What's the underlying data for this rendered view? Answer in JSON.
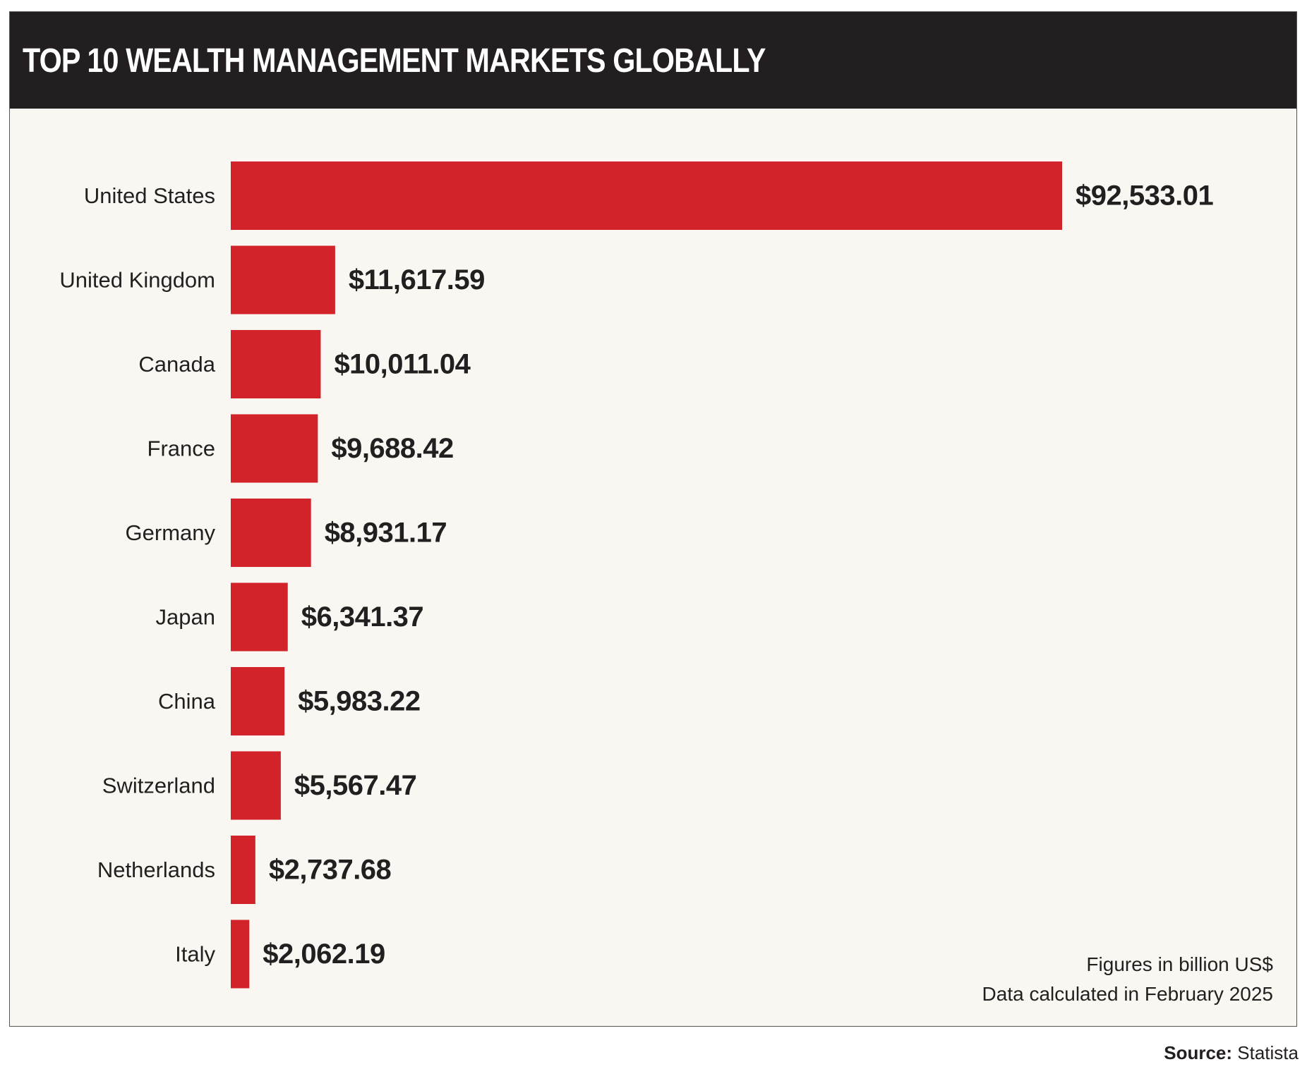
{
  "header": {
    "title": "TOP 10 WEALTH MANAGEMENT MARKETS GLOBALLY"
  },
  "notes": {
    "units": "Figures in billion US$",
    "calculated": "Data calculated in February 2025"
  },
  "source": {
    "label": "Source:",
    "name": "Statista"
  },
  "colors": {
    "bar": "#d2232b",
    "header_bg": "#231f20",
    "panel_bg": "#faf7f2"
  },
  "chart_data": {
    "type": "bar",
    "orientation": "horizontal",
    "title": "TOP 10 WEALTH MANAGEMENT MARKETS GLOBALLY",
    "categories": [
      "United States",
      "United Kingdom",
      "Canada",
      "France",
      "Germany",
      "Japan",
      "China",
      "Switzerland",
      "Netherlands",
      "Italy"
    ],
    "values": [
      92533.01,
      11617.59,
      10011.04,
      9688.42,
      8931.17,
      6341.37,
      5983.22,
      5567.47,
      2737.68,
      2062.19
    ],
    "value_labels": [
      "$92,533.01",
      "$11,617.59",
      "$10,011.04",
      "$9,688.42",
      "$8,931.17",
      "$6,341.37",
      "$5,983.22",
      "$5,567.47",
      "$2,737.68",
      "$2,062.19"
    ],
    "xlabel": "",
    "ylabel": "",
    "xlim": [
      0,
      92533.01
    ],
    "grid": false,
    "legend": "none"
  }
}
